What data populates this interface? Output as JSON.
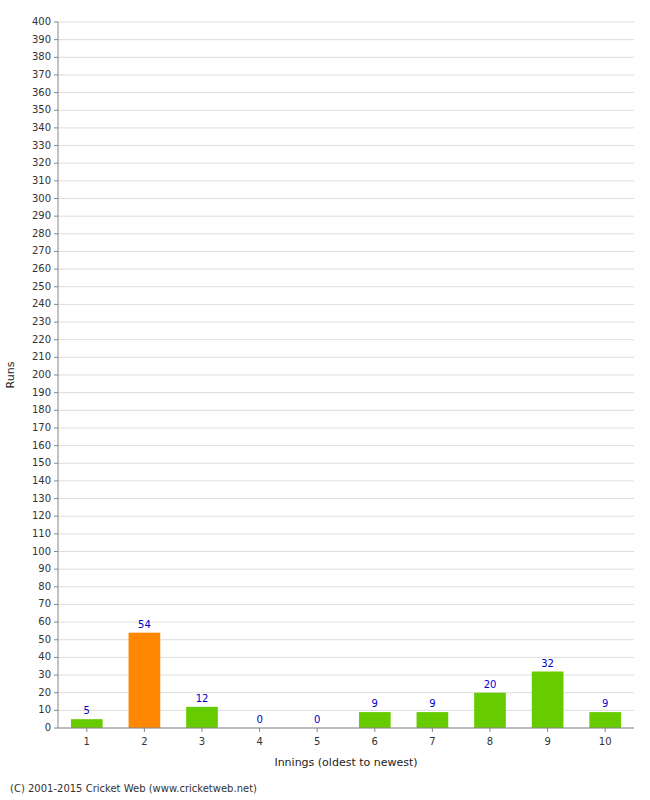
{
  "chart_data": {
    "type": "bar",
    "xlabel": "Innings (oldest to newest)",
    "ylabel": "Runs",
    "categories": [
      "1",
      "2",
      "3",
      "4",
      "5",
      "6",
      "7",
      "8",
      "9",
      "10"
    ],
    "values": [
      5,
      54,
      12,
      0,
      0,
      9,
      9,
      20,
      32,
      9
    ],
    "colors": [
      "#66cc00",
      "#ff8800",
      "#66cc00",
      "#66cc00",
      "#66cc00",
      "#66cc00",
      "#66cc00",
      "#66cc00",
      "#66cc00",
      "#66cc00"
    ],
    "ylim": [
      0,
      400
    ],
    "yticks": [
      0,
      10,
      20,
      30,
      40,
      50,
      60,
      70,
      80,
      90,
      100,
      110,
      120,
      130,
      140,
      150,
      160,
      170,
      180,
      190,
      200,
      210,
      220,
      230,
      240,
      250,
      260,
      270,
      280,
      290,
      300,
      310,
      320,
      330,
      340,
      350,
      360,
      370,
      380,
      390,
      400
    ],
    "grid": true,
    "data_labels": true,
    "annotations": [
      "(C) 2001-2015 Cricket Web (www.cricketweb.net)"
    ]
  }
}
